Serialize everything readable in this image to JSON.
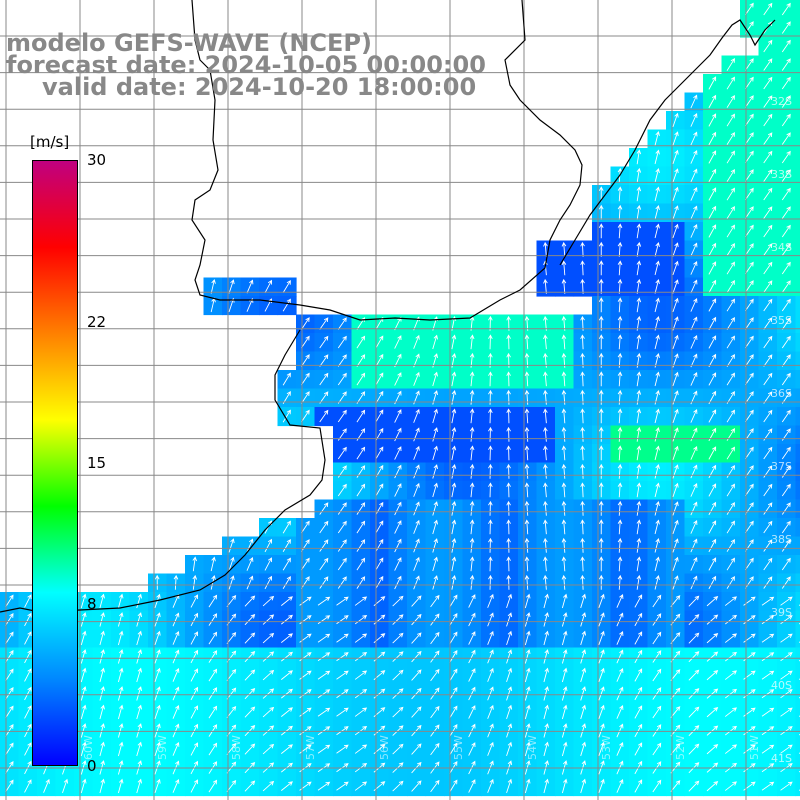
{
  "title": {
    "line1": "modelo GEFS-WAVE (NCEP)",
    "line2": "forecast date: 2024-10-05 00:00:00",
    "line3": "valid date: 2024-10-20 18:00:00",
    "color": "#888888"
  },
  "colorbar": {
    "unit": "[m/s]",
    "ticks": [
      "30",
      "22",
      "15",
      "8",
      "0"
    ],
    "tick_values": [
      30,
      22,
      15,
      8,
      0
    ],
    "range": [
      0,
      30
    ],
    "stops": [
      "#0000ff",
      "#0088ff",
      "#00ffff",
      "#00ff00",
      "#ffff00",
      "#ff8000",
      "#ff0000",
      "#c00080"
    ]
  },
  "map": {
    "field": "wind speed with direction arrows",
    "land_color": "#ffffff",
    "grid_color": "#888888",
    "coastline_color": "#000000",
    "arrow_color": "#ffffff",
    "lat_labels": [
      "32S",
      "33S",
      "34S",
      "35S",
      "36S",
      "37S",
      "38S",
      "39S",
      "40S",
      "41S"
    ],
    "lon_labels": [
      "60W",
      "59W",
      "58W",
      "57W",
      "56W",
      "55W",
      "54W",
      "53W",
      "52W",
      "51W"
    ]
  }
}
